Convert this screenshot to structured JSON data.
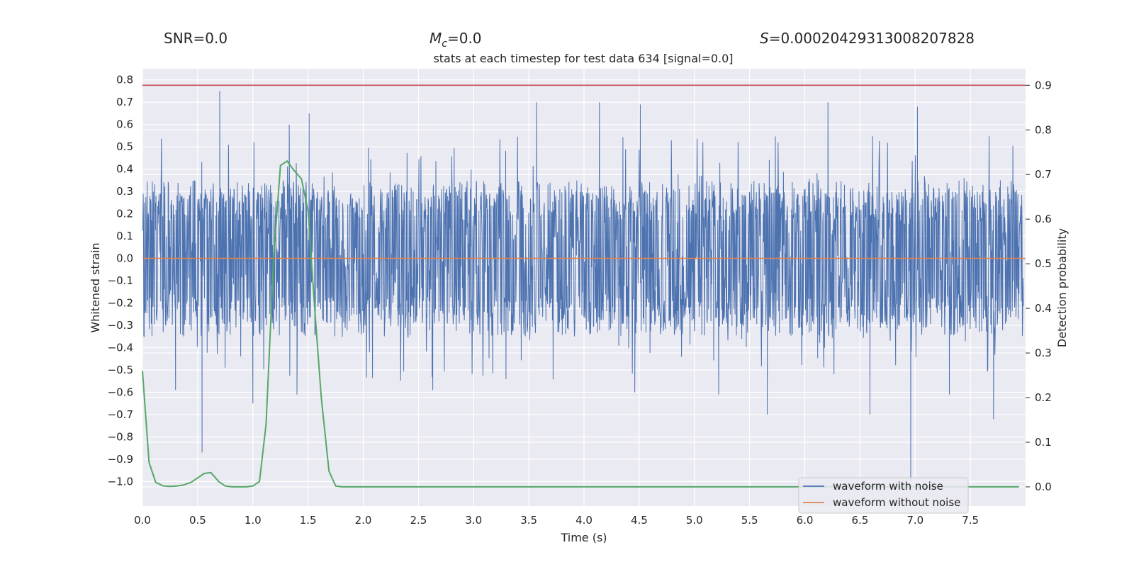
{
  "chart_data": {
    "type": "line",
    "header": {
      "snr_text": "SNR=0.0",
      "mc_symbol": "M",
      "mc_subscript": "c",
      "mc_value": "=0.0",
      "s_symbol": "S",
      "s_value": "=0.00020429313008207828"
    },
    "title": "stats at each timestep for test data 634 [signal=0.0]",
    "xlabel": "Time (s)",
    "ylabel_left": "Whitened strain",
    "ylabel_right": "Detection probability",
    "xlim": [
      0.0,
      8.0
    ],
    "ylim_left": [
      -1.11,
      0.85
    ],
    "ylim_right": [
      -0.043,
      0.937
    ],
    "x_ticks": [
      "0.0",
      "0.5",
      "1.0",
      "1.5",
      "2.0",
      "2.5",
      "3.0",
      "3.5",
      "4.0",
      "4.5",
      "5.0",
      "5.5",
      "6.0",
      "6.5",
      "7.0",
      "7.5"
    ],
    "y_ticks_left": [
      "0.8",
      "0.7",
      "0.6",
      "0.5",
      "0.4",
      "0.3",
      "0.2",
      "0.1",
      "0.0",
      "−0.1",
      "−0.2",
      "−0.3",
      "−0.4",
      "−0.5",
      "−0.6",
      "−0.7",
      "−0.8",
      "−0.9",
      "−1.0"
    ],
    "y_ticks_right": [
      "0.9",
      "0.8",
      "0.7",
      "0.6",
      "0.5",
      "0.4",
      "0.3",
      "0.2",
      "0.1",
      "0.0"
    ],
    "threshold": 0.9,
    "legend": {
      "position": "lower right",
      "entries": [
        {
          "label": "waveform with noise",
          "color": "#4c72b0"
        },
        {
          "label": "waveform without noise",
          "color": "#dd8452"
        }
      ]
    },
    "series": [
      {
        "name": "waveform with noise",
        "axis": "left",
        "color": "#4c72b0",
        "description": "whitened strain noise trace, band roughly -0.3 to 0.3",
        "envelope_low": -0.3,
        "envelope_high": 0.3,
        "spikes": [
          {
            "x": 0.7,
            "y": 0.75
          },
          {
            "x": 0.54,
            "y": -0.87
          },
          {
            "x": 1.51,
            "y": 0.65
          },
          {
            "x": 1.33,
            "y": 0.6
          },
          {
            "x": 3.57,
            "y": 0.7
          },
          {
            "x": 4.14,
            "y": 0.7
          },
          {
            "x": 4.51,
            "y": 0.69
          },
          {
            "x": 6.21,
            "y": 0.7
          },
          {
            "x": 6.96,
            "y": -1.0
          },
          {
            "x": 7.02,
            "y": 0.68
          },
          {
            "x": 1.0,
            "y": -0.65
          },
          {
            "x": 7.71,
            "y": -0.72
          },
          {
            "x": 5.66,
            "y": -0.7
          },
          {
            "x": 6.59,
            "y": -0.7
          },
          {
            "x": 0.3,
            "y": -0.59
          },
          {
            "x": 1.4,
            "y": -0.61
          },
          {
            "x": 2.63,
            "y": -0.59
          },
          {
            "x": 4.46,
            "y": -0.6
          },
          {
            "x": 5.22,
            "y": -0.61
          },
          {
            "x": 7.31,
            "y": -0.61
          }
        ]
      },
      {
        "name": "waveform without noise",
        "axis": "left",
        "color": "#dd8452",
        "x": [
          0.0,
          8.0
        ],
        "y": [
          0.0,
          0.0
        ]
      },
      {
        "name": "detection probability",
        "axis": "right",
        "color": "#55a868",
        "x": [
          0.0,
          0.06,
          0.12,
          0.19,
          0.25,
          0.31,
          0.37,
          0.44,
          0.5,
          0.56,
          0.62,
          0.69,
          0.75,
          0.81,
          0.87,
          0.94,
          1.0,
          1.06,
          1.12,
          1.19,
          1.25,
          1.31,
          1.37,
          1.44,
          1.5,
          1.56,
          1.62,
          1.69,
          1.75,
          1.81,
          1.88,
          2.5,
          3.0,
          4.0,
          5.0,
          6.0,
          7.0,
          7.94
        ],
        "y": [
          0.26,
          0.055,
          0.01,
          0.002,
          0.001,
          0.002,
          0.004,
          0.01,
          0.02,
          0.03,
          0.032,
          0.012,
          0.002,
          0.0,
          0.0,
          0.0,
          0.002,
          0.012,
          0.14,
          0.52,
          0.72,
          0.73,
          0.71,
          0.69,
          0.62,
          0.4,
          0.2,
          0.035,
          0.002,
          0.0,
          0.0,
          0.0,
          0.0,
          0.0,
          0.0,
          0.0,
          0.0,
          0.0
        ]
      }
    ]
  }
}
